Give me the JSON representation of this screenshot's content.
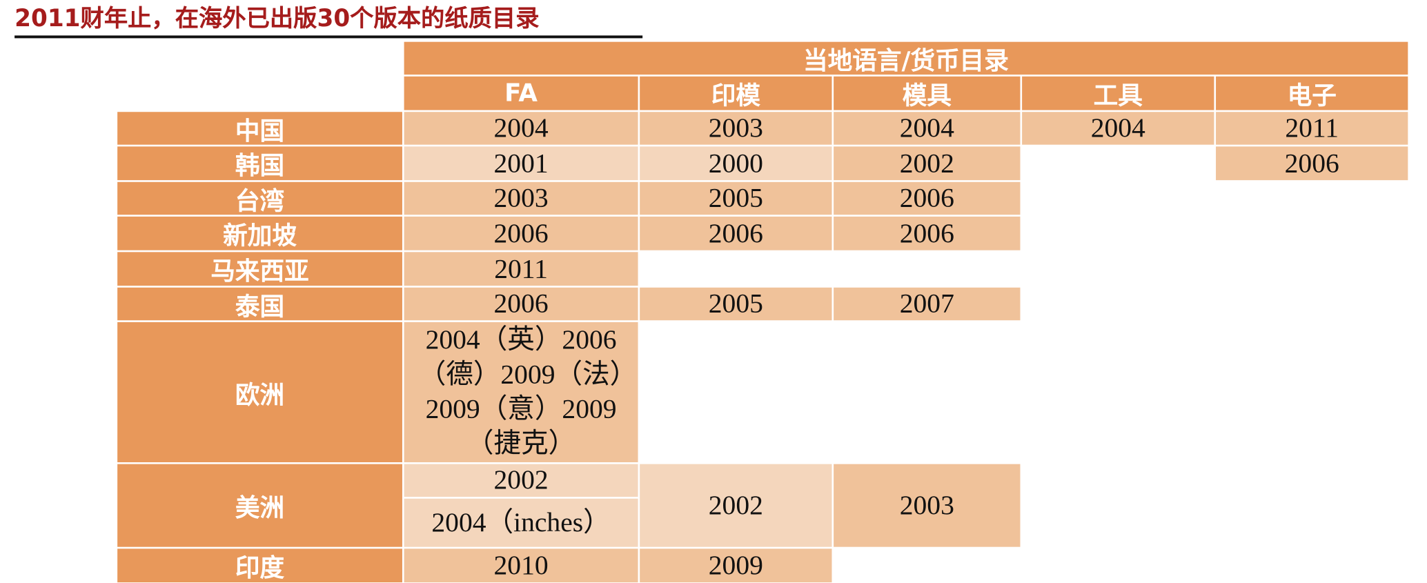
{
  "title": "2011财年止，在海外已出版30个版本的纸质目录",
  "table": {
    "group_header": "当地语言/货币目录",
    "columns": [
      "FA",
      "印模",
      "模具",
      "工具",
      "电子"
    ],
    "rows": [
      {
        "label": "中国",
        "cells": [
          "2004",
          "2003",
          "2004",
          "2004",
          "2011"
        ]
      },
      {
        "label": "韩国",
        "cells": [
          "2001",
          "2000",
          "2002",
          null,
          "2006"
        ]
      },
      {
        "label": "台湾",
        "cells": [
          "2003",
          "2005",
          "2006",
          null,
          null
        ]
      },
      {
        "label": "新加坡",
        "cells": [
          "2006",
          "2006",
          "2006",
          null,
          null
        ]
      },
      {
        "label": "马来西亚",
        "cells": [
          "2011",
          null,
          null,
          null,
          null
        ]
      },
      {
        "label": "泰国",
        "cells": [
          "2006",
          "2005",
          "2007",
          null,
          null
        ]
      },
      {
        "label": "欧洲",
        "cells": [
          "2004（英）2006（德）2009（法）2009（意）2009（捷克）",
          null,
          null,
          null,
          null
        ]
      },
      {
        "label": "美洲",
        "cells": [
          [
            "2002",
            "2004（inches）"
          ],
          "2002",
          "2003",
          null,
          null
        ]
      },
      {
        "label": "印度",
        "cells": [
          "2010",
          "2009",
          null,
          null,
          null
        ]
      }
    ]
  }
}
